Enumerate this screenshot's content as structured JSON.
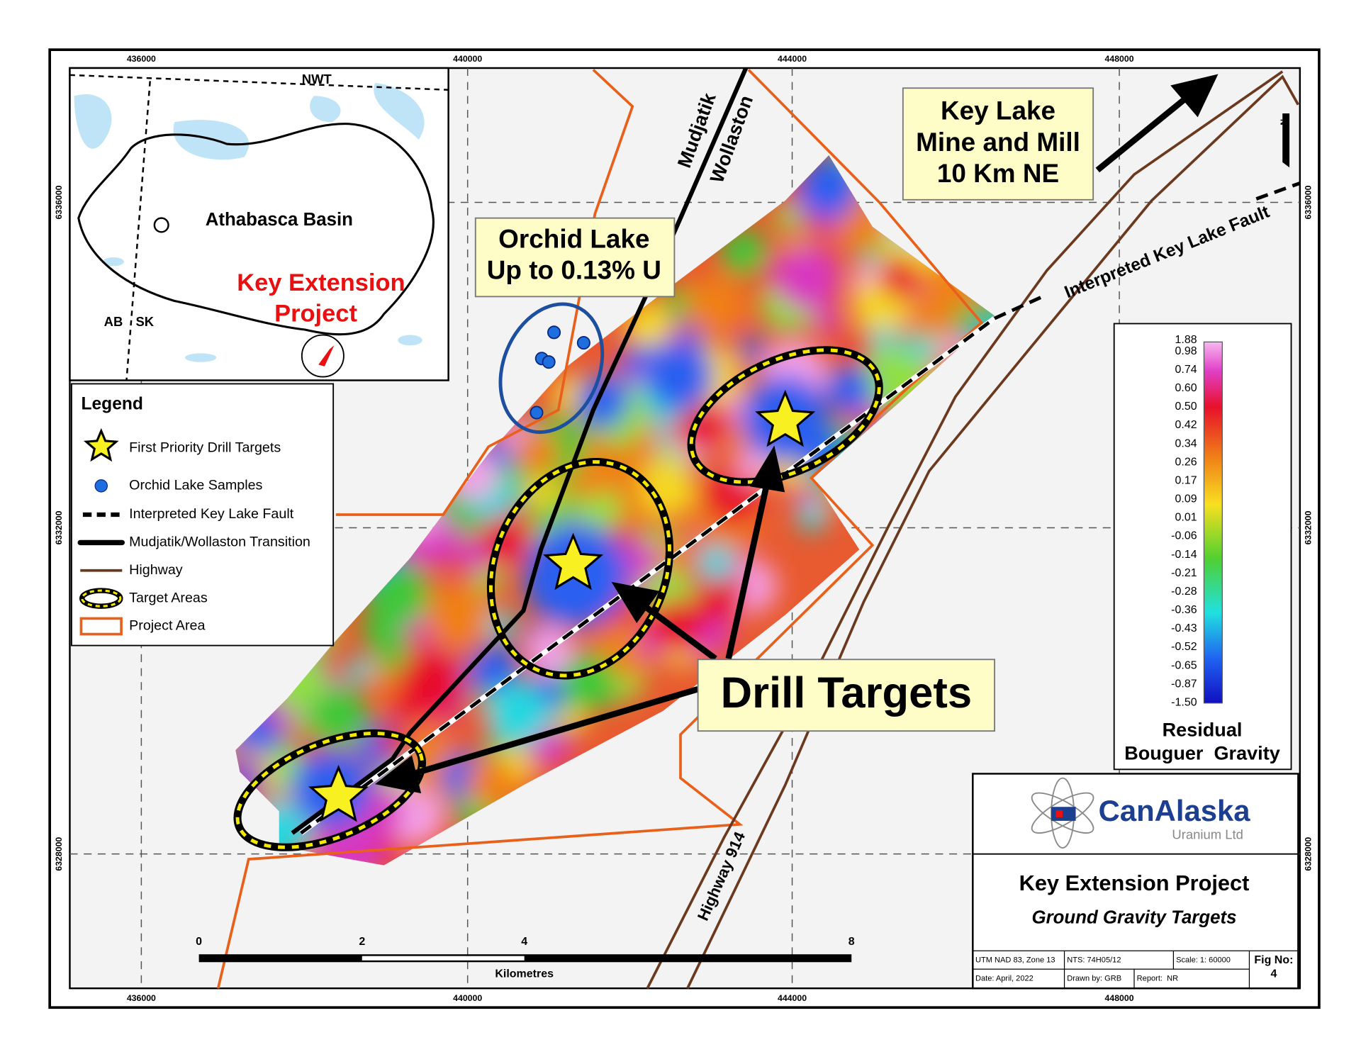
{
  "map": {
    "eastings": [
      "436000",
      "440000",
      "444000",
      "448000"
    ],
    "northings": [
      "6336000",
      "6332000",
      "6328000"
    ],
    "inset": {
      "nwt": "NWT",
      "basin": "Athabasca Basin",
      "ab": "AB",
      "sk": "SK",
      "project": [
        "Key Extension",
        "Project"
      ]
    },
    "callouts": {
      "key_lake": [
        "Key Lake",
        "Mine and Mill",
        "10 Km NE"
      ],
      "orchid": [
        "Orchid Lake",
        "Up to 0.13% U"
      ],
      "drill": "Drill Targets"
    },
    "labels": {
      "mudjatik": "Mudjatik",
      "wollaston": "Wollaston",
      "fault": "Interpreted Key Lake Fault",
      "highway": "Highway 914"
    },
    "legend": {
      "title": "Legend",
      "items": [
        "First Priority Drill Targets",
        "Orchid Lake Samples",
        "Interpreted Key Lake Fault",
        "Mudjatik/Wollaston Transition",
        "Highway",
        "Target Areas",
        "Project Area"
      ]
    },
    "colorbar": {
      "labels": [
        "1.88",
        "0.98",
        "0.74",
        "0.60",
        "0.50",
        "0.42",
        "0.34",
        "0.26",
        "0.17",
        "0.09",
        "0.01",
        "-0.06",
        "-0.14",
        "-0.21",
        "-0.28",
        "-0.36",
        "-0.43",
        "-0.52",
        "-0.65",
        "-0.87",
        "-1.50"
      ],
      "title": [
        "Residual",
        "Bouguer  Gravity"
      ]
    },
    "scale_bar": {
      "ticks": [
        "0",
        "2",
        "4",
        "8"
      ],
      "unit": "Kilometres"
    },
    "north": "N",
    "title_block": {
      "company": "CanAlaska",
      "sub": "Uranium Ltd",
      "title": "Key Extension Project",
      "subtitle": "Ground Gravity Targets",
      "cells": [
        "UTM NAD 83, Zone 13",
        "NTS: 74H05/12",
        "Scale: 1: 60000",
        "Date: April, 2022",
        "Drawn by: GRB",
        "Report:  NR"
      ],
      "fig": [
        "Fig No:",
        "4"
      ]
    }
  }
}
